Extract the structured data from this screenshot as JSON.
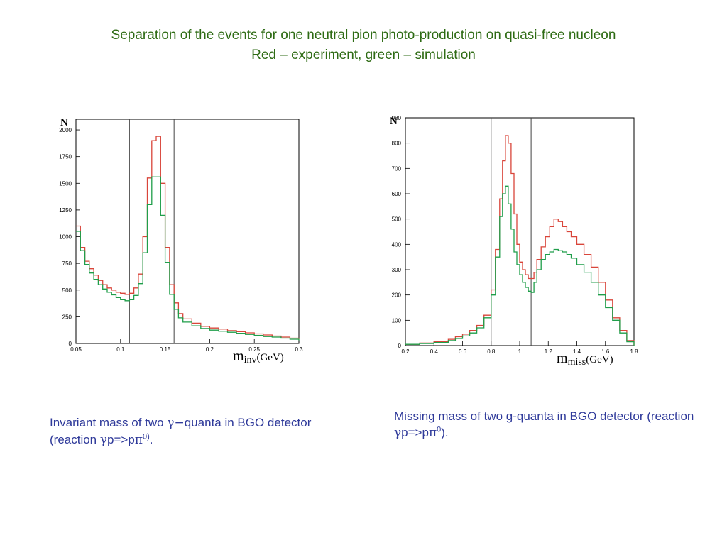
{
  "slide": {
    "title_line1": "Separation of the events for one neutral pion photo-production on quasi-free nucleon",
    "title_line2": "Red – experiment, green – simulation",
    "caption_left": {
      "p1": "Invariant mass of two ",
      "g1": "γ−",
      "p2": "quanta in BGO detector (reaction ",
      "g2": "γ",
      "p3": "p=>p",
      "g3": "π",
      "sup": "0)",
      "p4": "."
    },
    "caption_right": {
      "p1": "Missing mass of two g-quanta in BGO detector (reaction ",
      "g1": "γ",
      "p2": "p=>p",
      "g2": "π",
      "sup": "0",
      "p3": ")."
    }
  },
  "colors": {
    "experiment": "#d9453a",
    "simulation": "#1f9e4a",
    "title": "#2e6b14",
    "caption": "#2f3a9a"
  },
  "chart_data": [
    {
      "type": "line",
      "ylabel": "N",
      "xlabel_main": "m",
      "xlabel_sub": "inv",
      "xlabel_unit": "(GeV)",
      "xlim": [
        0.05,
        0.3
      ],
      "ylim": [
        0,
        2100
      ],
      "xticks": [
        0.05,
        0.1,
        0.15,
        0.2,
        0.25,
        0.3
      ],
      "xtick_labels": [
        "0.05",
        "0.1",
        "0.15",
        "0.2",
        "0.25",
        "0.3"
      ],
      "yticks": [
        0,
        250,
        500,
        750,
        1000,
        1250,
        1500,
        1750,
        2000
      ],
      "ytick_labels": [
        "0",
        "250",
        "500",
        "750",
        "1000",
        "1250",
        "1500",
        "1750",
        "2000"
      ],
      "cuts": [
        0.11,
        0.16
      ],
      "x": [
        0.05,
        0.055,
        0.06,
        0.065,
        0.07,
        0.075,
        0.08,
        0.085,
        0.09,
        0.095,
        0.1,
        0.105,
        0.11,
        0.115,
        0.12,
        0.125,
        0.13,
        0.135,
        0.14,
        0.145,
        0.15,
        0.155,
        0.16,
        0.165,
        0.17,
        0.18,
        0.19,
        0.2,
        0.21,
        0.22,
        0.23,
        0.24,
        0.25,
        0.26,
        0.27,
        0.28,
        0.29,
        0.3
      ],
      "series": [
        {
          "name": "experiment",
          "role": "experiment",
          "values": [
            1100,
            900,
            770,
            700,
            640,
            590,
            550,
            520,
            500,
            480,
            470,
            460,
            470,
            520,
            650,
            1000,
            1550,
            1900,
            1940,
            1500,
            900,
            550,
            380,
            280,
            230,
            190,
            160,
            145,
            135,
            120,
            110,
            100,
            90,
            80,
            70,
            60,
            50,
            40
          ]
        },
        {
          "name": "simulation",
          "role": "simulation",
          "values": [
            1050,
            870,
            740,
            660,
            600,
            550,
            510,
            480,
            455,
            430,
            410,
            400,
            410,
            450,
            560,
            850,
            1300,
            1560,
            1560,
            1200,
            760,
            460,
            320,
            240,
            200,
            165,
            140,
            125,
            115,
            105,
            95,
            85,
            75,
            65,
            60,
            50,
            40,
            30
          ]
        }
      ]
    },
    {
      "type": "line",
      "ylabel": "N",
      "xlabel_main": "m",
      "xlabel_sub": "miss",
      "xlabel_unit": "(GeV)",
      "xlim": [
        0.2,
        1.8
      ],
      "ylim": [
        0,
        900
      ],
      "xticks": [
        0.2,
        0.4,
        0.6,
        0.8,
        1.0,
        1.2,
        1.4,
        1.6,
        1.8
      ],
      "xtick_labels": [
        "0.2",
        "0.4",
        "0.6",
        "0.8",
        "1",
        "1.2",
        "1.4",
        "1.6",
        "1.8"
      ],
      "yticks": [
        0,
        100,
        200,
        300,
        400,
        500,
        600,
        700,
        800,
        900
      ],
      "ytick_labels": [
        "0",
        "100",
        "200",
        "300",
        "400",
        "500",
        "600",
        "700",
        "800",
        "900"
      ],
      "cuts": [
        0.8,
        1.08
      ],
      "x": [
        0.2,
        0.3,
        0.4,
        0.5,
        0.55,
        0.6,
        0.65,
        0.7,
        0.75,
        0.8,
        0.83,
        0.86,
        0.88,
        0.9,
        0.92,
        0.94,
        0.96,
        0.98,
        1.0,
        1.02,
        1.04,
        1.06,
        1.08,
        1.1,
        1.12,
        1.15,
        1.18,
        1.21,
        1.24,
        1.27,
        1.3,
        1.33,
        1.36,
        1.4,
        1.45,
        1.5,
        1.55,
        1.6,
        1.65,
        1.7,
        1.75,
        1.8
      ],
      "series": [
        {
          "name": "experiment",
          "role": "experiment",
          "values": [
            5,
            10,
            15,
            25,
            35,
            45,
            60,
            80,
            120,
            220,
            380,
            580,
            730,
            830,
            800,
            680,
            520,
            400,
            330,
            300,
            280,
            265,
            265,
            290,
            340,
            390,
            430,
            470,
            500,
            490,
            470,
            450,
            430,
            400,
            360,
            310,
            250,
            180,
            110,
            60,
            20,
            0
          ]
        },
        {
          "name": "simulation",
          "role": "simulation",
          "values": [
            5,
            8,
            12,
            20,
            28,
            38,
            50,
            70,
            110,
            200,
            350,
            510,
            600,
            630,
            560,
            460,
            370,
            320,
            280,
            250,
            230,
            215,
            210,
            250,
            300,
            340,
            360,
            370,
            380,
            375,
            370,
            360,
            345,
            320,
            290,
            250,
            200,
            150,
            100,
            50,
            15,
            0
          ]
        }
      ]
    }
  ]
}
